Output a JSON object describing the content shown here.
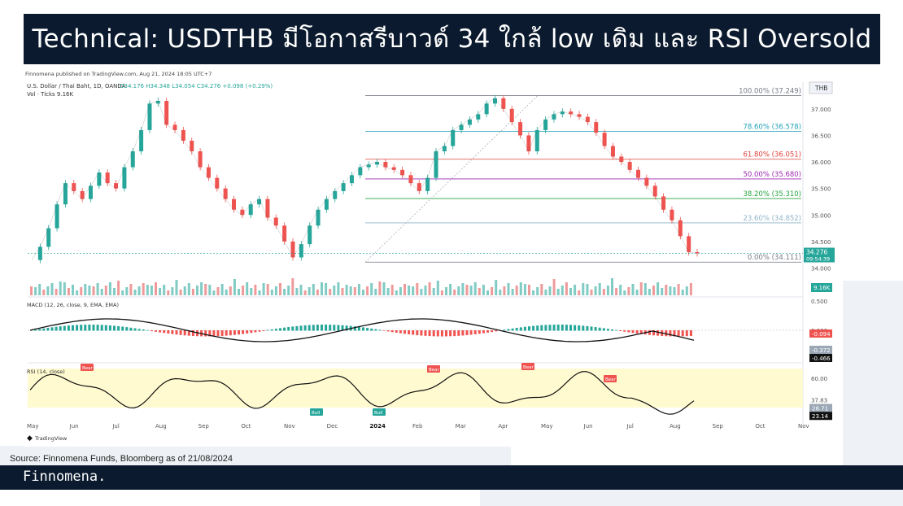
{
  "title": "Technical: USDTHB มีโอกาสรีบาวด์ 34 ใกล้ low เดิม และ RSI Oversold",
  "chart_header": {
    "published": "Finnomena published on TradingView.com, Aug 21, 2024 18:05 UTC+7",
    "symbol": "U.S. Dollar / Thai Baht, 1D, OANDA",
    "ohlc": "O34.176  H34.348  L34.054  C34.276  +0.098 (+0.29%)",
    "volume": "Vol · Ticks  9.16K",
    "currency": "THB",
    "logo_text": "TradingView"
  },
  "chart_data": [
    {
      "type": "line",
      "name": "USDTHB price",
      "ylim": [
        33.9,
        37.35
      ],
      "yticks": [
        "37.000",
        "36.500",
        "36.000",
        "35.500",
        "35.000",
        "34.500",
        "34.000"
      ],
      "ytick_values": [
        37.0,
        36.5,
        36.0,
        35.5,
        35.0,
        34.5,
        34.0
      ],
      "x_labels": [
        "May",
        "Jun",
        "Jul",
        "Aug",
        "Sep",
        "Oct",
        "Nov",
        "Dec",
        "2024",
        "Feb",
        "Mar",
        "Apr",
        "May",
        "Jun",
        "Jul",
        "Aug",
        "Sep",
        "Oct",
        "Nov"
      ],
      "series": [
        {
          "x": [
            0,
            5,
            10,
            15,
            20,
            25,
            30,
            35,
            40,
            45,
            50,
            55,
            60,
            65,
            70,
            75,
            80,
            85,
            90,
            95,
            100,
            105,
            110,
            115,
            120,
            125,
            130,
            135,
            140,
            145,
            150,
            155,
            160,
            165,
            170,
            175,
            180,
            185,
            190,
            195,
            200,
            205,
            210,
            215,
            220,
            225,
            230,
            235,
            240,
            245,
            250,
            255,
            260,
            265,
            270,
            275,
            280,
            285,
            290,
            295,
            300,
            305,
            310,
            315,
            320,
            325,
            330,
            335,
            340,
            345,
            350,
            355,
            360,
            365,
            370,
            375,
            380,
            385,
            390,
            395
          ],
          "y": [
            34.15,
            34.4,
            34.75,
            35.2,
            35.6,
            35.45,
            35.3,
            35.55,
            35.8,
            35.6,
            35.5,
            35.9,
            36.2,
            36.6,
            37.1,
            37.15,
            36.7,
            36.6,
            36.4,
            36.2,
            35.9,
            35.7,
            35.5,
            35.3,
            35.1,
            35.0,
            35.2,
            35.3,
            34.95,
            34.8,
            34.5,
            34.2,
            34.45,
            34.8,
            35.1,
            35.3,
            35.45,
            35.6,
            35.75,
            35.9,
            35.95,
            36.0,
            35.9,
            35.85,
            35.75,
            35.6,
            35.45,
            35.7,
            36.2,
            36.3,
            36.6,
            36.7,
            36.8,
            36.9,
            37.1,
            37.2,
            37.0,
            36.75,
            36.5,
            36.2,
            36.6,
            36.8,
            36.9,
            36.95,
            36.9,
            36.85,
            36.75,
            36.55,
            36.3,
            36.1,
            36.0,
            35.85,
            35.7,
            35.55,
            35.35,
            35.1,
            34.9,
            34.6,
            34.3,
            34.276
          ]
        }
      ]
    },
    {
      "type": "line",
      "name": "Fibonacci retracement",
      "levels": [
        {
          "label": "100.00% (37.249)",
          "value": 37.249,
          "color": "#787b86"
        },
        {
          "label": "78.60% (36.578)",
          "value": 36.578,
          "color": "#22a3b8"
        },
        {
          "label": "61.80% (36.051)",
          "value": 36.051,
          "color": "#e0413a"
        },
        {
          "label": "50.00% (35.680)",
          "value": 35.68,
          "color": "#9c27b0"
        },
        {
          "label": "38.20% (35.310)",
          "value": 35.31,
          "color": "#26a640"
        },
        {
          "label": "23.60% (34.852)",
          "value": 34.852,
          "color": "#8fb4c9"
        },
        {
          "label": "0.00% (34.111)",
          "value": 34.111,
          "color": "#787b86"
        }
      ],
      "last_price_label": "34.276",
      "countdown": "09:54:39",
      "volume_badge": "9.16K"
    },
    {
      "type": "bar",
      "name": "MACD (12, 26, close, 9, EMA, EMA)",
      "legend_values": [
        "-0.094",
        "-0.466",
        "-0.372"
      ],
      "yticks": [
        "0.500",
        "0.000"
      ],
      "labels": [
        "-0.094",
        "-0.372",
        "-0.466"
      ]
    },
    {
      "type": "line",
      "name": "RSI (14, close)",
      "ylim": [
        20,
        70
      ],
      "yticks": [
        "60.00",
        "37.83",
        "27.52"
      ],
      "labels": [
        "28.71",
        "23.14"
      ],
      "divergence_labels": [
        "Bear",
        "Bear",
        "Bear",
        "Bear",
        "Bull",
        "Bull"
      ]
    }
  ],
  "source": "Source: Finnomena Funds, Bloomberg as of 21/08/2024",
  "footer_brand": "Finnomena."
}
